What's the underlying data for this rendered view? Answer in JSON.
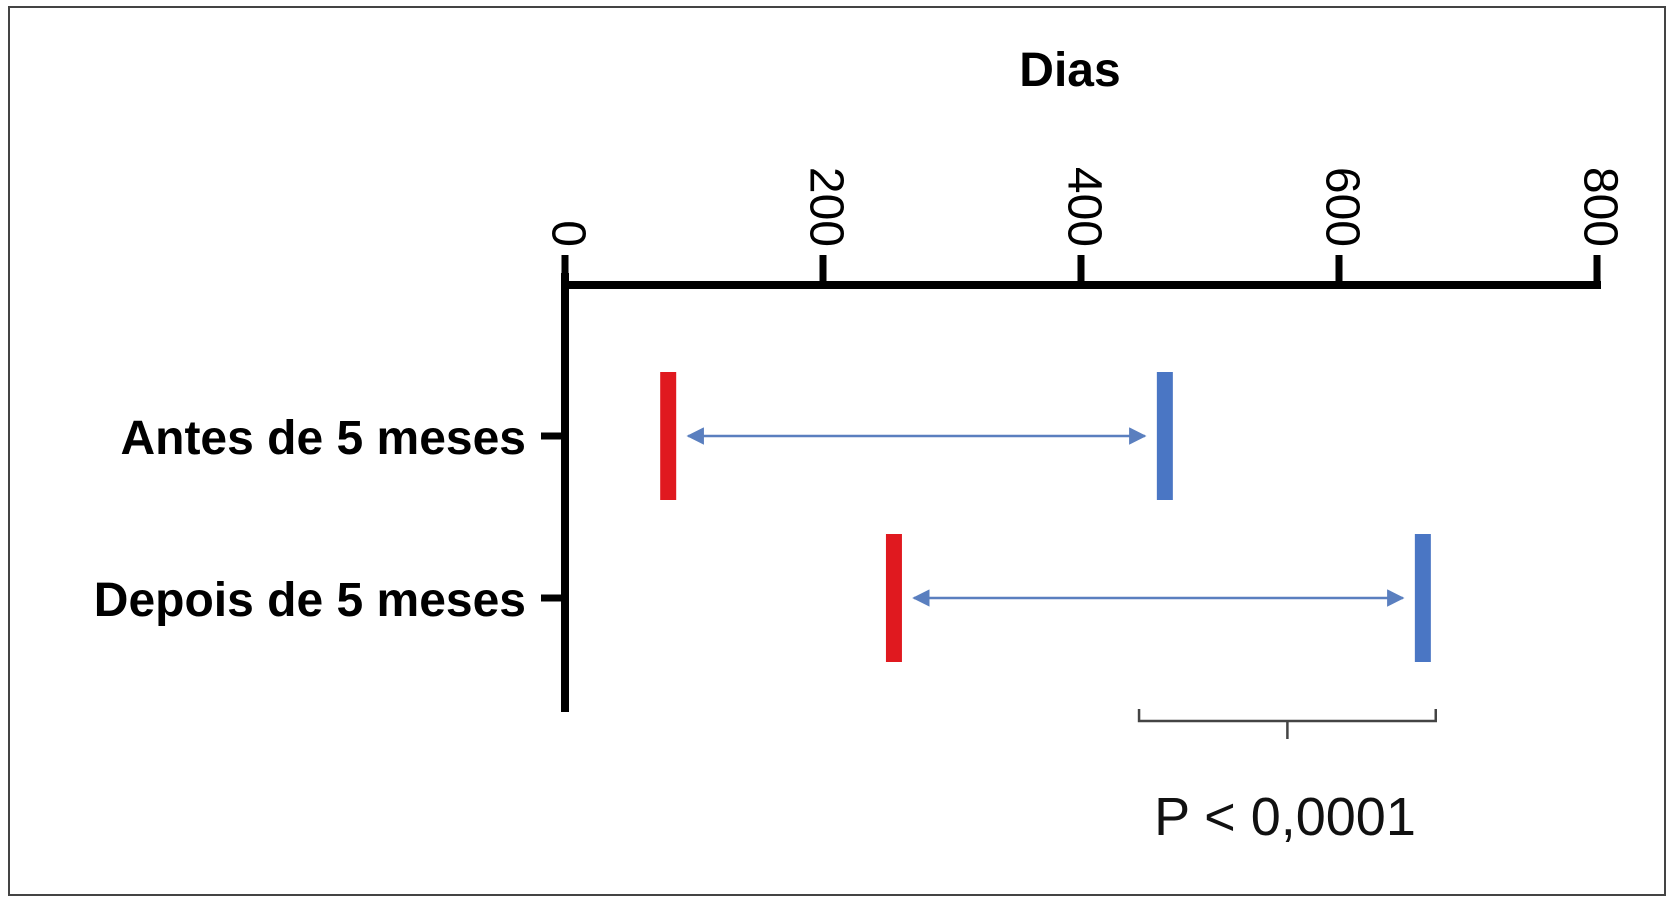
{
  "chart_data": {
    "type": "interval",
    "title": "",
    "xlabel": "Dias",
    "ylabel": "",
    "xlim": [
      0,
      800
    ],
    "x_ticks": [
      "0",
      "200",
      "400",
      "600",
      "800"
    ],
    "x_tick_values": [
      0,
      200,
      400,
      600,
      800
    ],
    "categories": [
      "Antes de 5 meses",
      "Depois de 5 meses"
    ],
    "intervals": [
      {
        "category": "Antes de 5 meses",
        "start": 80,
        "end": 465
      },
      {
        "category": "Depois de 5 meses",
        "start": 255,
        "end": 665
      }
    ],
    "start_color": "#e0191f",
    "end_color": "#4a76c4",
    "arrow_color": "#5a7fbf",
    "bracket": {
      "from": 445,
      "to": 675
    },
    "annotation": "P < 0,0001"
  }
}
